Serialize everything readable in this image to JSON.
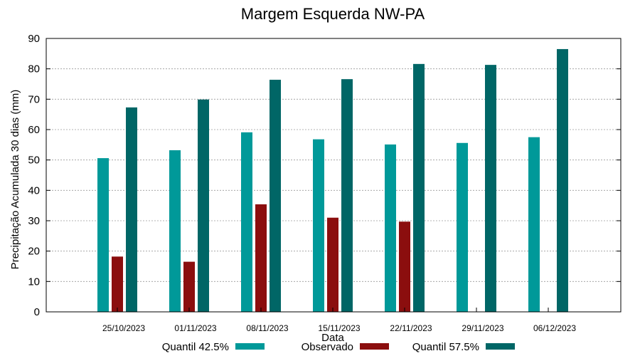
{
  "chart_data": {
    "type": "bar",
    "title": "Margem Esquerda NW-PA",
    "xlabel": "Data",
    "ylabel": "Precipitação Acumulada 30 dias (mm)",
    "ylim": [
      0,
      90
    ],
    "yticks": [
      0,
      10,
      20,
      30,
      40,
      50,
      60,
      70,
      80,
      90
    ],
    "grid": true,
    "legend_position": "bottom",
    "categories": [
      "25/10/2023",
      "01/11/2023",
      "08/11/2023",
      "15/11/2023",
      "22/11/2023",
      "29/11/2023",
      "06/12/2023"
    ],
    "series": [
      {
        "name": "Quantil 42.5%",
        "color": "#009999",
        "values": [
          50.6,
          53.2,
          59.1,
          56.8,
          55.1,
          55.6,
          57.5
        ]
      },
      {
        "name": "Observado",
        "color": "#8b0e0e",
        "values": [
          18.2,
          16.5,
          35.4,
          31.0,
          29.7,
          null,
          null
        ]
      },
      {
        "name": "Quantil 57.5%",
        "color": "#006666",
        "values": [
          67.3,
          69.9,
          76.4,
          76.6,
          81.6,
          81.3,
          86.5
        ]
      }
    ]
  }
}
